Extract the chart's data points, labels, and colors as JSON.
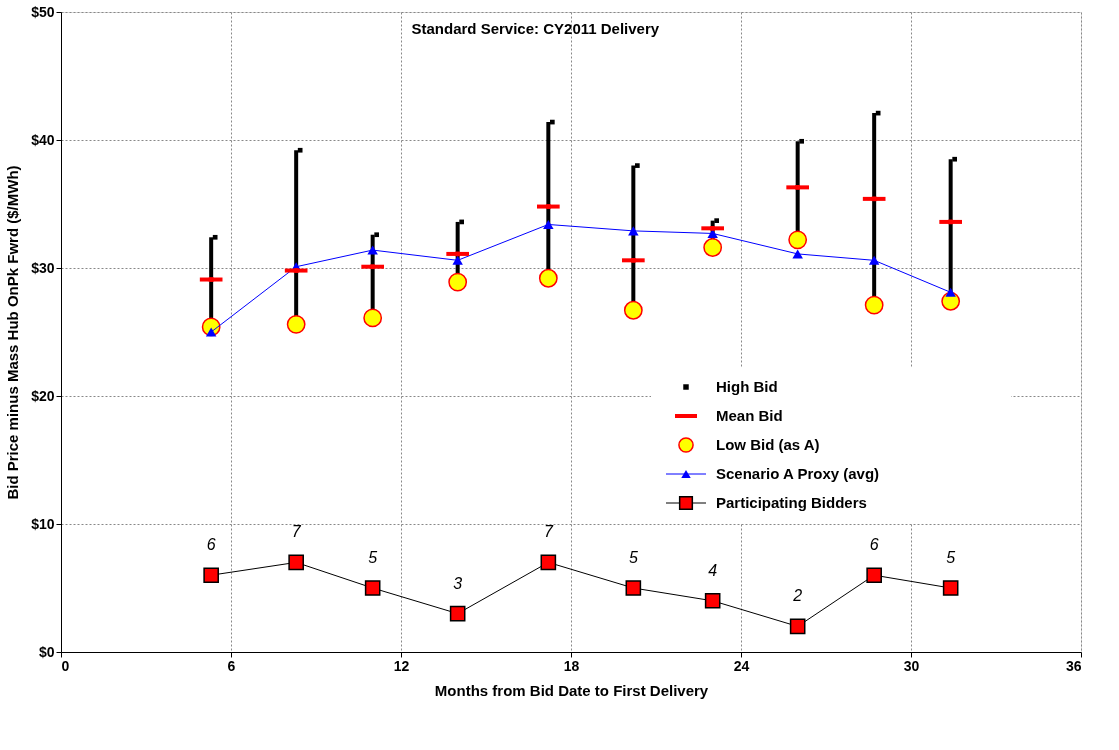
{
  "chart_data": {
    "type": "scatter",
    "title": "Standard Service:  CY2011 Delivery",
    "xlabel": "Months from Bid Date to First Delivery",
    "ylabel": "Bid Price minus Mass Hub OnPk Fwrd ($/MWh)",
    "x": [
      5.3,
      8.3,
      11.0,
      14.0,
      17.2,
      20.2,
      23.0,
      26.0,
      28.7,
      31.4
    ],
    "series": [
      {
        "name": "High Bid",
        "marker": "square",
        "color": "#000000",
        "values": [
          32.4,
          39.2,
          32.6,
          33.6,
          41.4,
          38.0,
          33.7,
          39.9,
          42.1,
          38.5
        ]
      },
      {
        "name": "Mean Bid",
        "marker": "square",
        "color": "#ff0000",
        "values": [
          29.1,
          29.8,
          30.1,
          31.1,
          34.8,
          30.6,
          33.1,
          36.3,
          35.4,
          33.6
        ],
        "xerrors": [
          0.4,
          0.4,
          0.4,
          0.4,
          0.4,
          0.4,
          0.4,
          0.4,
          0.4,
          0.4
        ]
      },
      {
        "name": "Low Bid (as A)",
        "marker": "circle",
        "color": "#ffff00",
        "values": [
          25.4,
          25.6,
          26.1,
          28.9,
          29.2,
          26.7,
          31.6,
          32.2,
          27.1,
          27.4
        ],
        "errors": [
          [
            25.4,
            32.4
          ],
          [
            25.6,
            39.2
          ],
          [
            26.1,
            32.6
          ],
          [
            28.9,
            33.6
          ],
          [
            29.2,
            41.4
          ],
          [
            26.7,
            38.0
          ],
          [
            31.6,
            33.7
          ],
          [
            32.2,
            39.9
          ],
          [
            27.1,
            42.1
          ],
          [
            27.4,
            38.5
          ]
        ]
      },
      {
        "name": "Scenario A Proxy (avg)",
        "type": "line",
        "marker": "triangle",
        "color": "#0000ff",
        "values": [
          25.0,
          30.1,
          31.4,
          30.6,
          33.4,
          32.9,
          32.7,
          31.1,
          30.6,
          28.1
        ]
      },
      {
        "name": "Participating Bidders",
        "type": "line",
        "marker": "square",
        "color": "#ff0000",
        "values": [
          6,
          7,
          5,
          3,
          7,
          5,
          4,
          2,
          6,
          5
        ],
        "value_labels": [
          "6",
          "7",
          "5",
          "3",
          "7",
          "5",
          "4",
          "2",
          "6",
          "5"
        ]
      }
    ],
    "xlim": [
      0,
      36
    ],
    "xticks": [
      0,
      6,
      12,
      18,
      24,
      30,
      36
    ],
    "ylim": [
      0,
      50
    ],
    "yticks": [
      {
        "value": 0,
        "label": "$0"
      },
      {
        "value": 10,
        "label": "$10"
      },
      {
        "value": 20,
        "label": "$20"
      },
      {
        "value": 30,
        "label": "$30"
      },
      {
        "value": 40,
        "label": "$40"
      },
      {
        "value": 50,
        "label": "$50"
      }
    ],
    "grid": true,
    "legend": "right"
  }
}
